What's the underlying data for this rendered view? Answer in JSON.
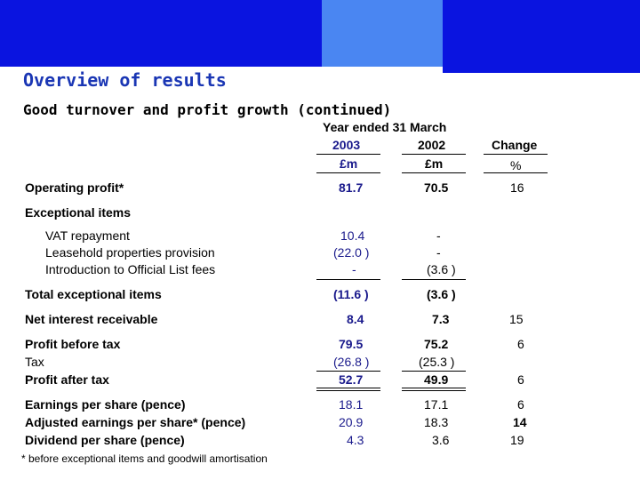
{
  "slide": {
    "title": "Overview of results",
    "subtitle": "Good turnover and profit growth (continued)"
  },
  "table": {
    "period_header": "Year ended 31 March",
    "col_2003": "2003",
    "col_2002": "2002",
    "col_change": "Change",
    "unit_2003": "£m",
    "unit_2002": "£m",
    "unit_change": "%",
    "rows": {
      "operating_profit": {
        "label": "Operating profit*",
        "v2003": "81.7",
        "v2002": "70.5",
        "change": "16"
      },
      "exceptional_items": {
        "label": "Exceptional items"
      },
      "vat_repayment": {
        "label": "VAT repayment",
        "v2003": "10.4",
        "v2002": "-"
      },
      "leasehold": {
        "label": "Leasehold properties provision",
        "v2003": "(22.0 )",
        "v2002": "-"
      },
      "official_list": {
        "label": "Introduction to Official List fees",
        "v2003": "-",
        "v2002": "(3.6 )"
      },
      "total_exceptional": {
        "label": "Total exceptional items",
        "v2003": "(11.6 )",
        "v2002": "(3.6 )"
      },
      "net_interest": {
        "label": "Net interest receivable",
        "v2003": "8.4",
        "v2002": "7.3",
        "change": "15"
      },
      "profit_before_tax": {
        "label": "Profit before tax",
        "v2003": "79.5",
        "v2002": "75.2",
        "change": "6"
      },
      "tax": {
        "label": "Tax",
        "v2003": "(26.8 )",
        "v2002": "(25.3 )"
      },
      "profit_after_tax": {
        "label": "Profit after tax",
        "v2003": "52.7",
        "v2002": "49.9",
        "change": "6"
      },
      "eps": {
        "label": "Earnings per share (pence)",
        "v2003": "18.1",
        "v2002": "17.1",
        "change": "6"
      },
      "adjusted_eps": {
        "label": "Adjusted earnings per share* (pence)",
        "v2003": "20.9",
        "v2002": "18.3",
        "change": "14"
      },
      "dps": {
        "label": "Dividend per share (pence)",
        "v2003": "4.3",
        "v2002": "3.6",
        "change": "19"
      }
    }
  },
  "footnote": "* before exceptional items and goodwill amortisation"
}
